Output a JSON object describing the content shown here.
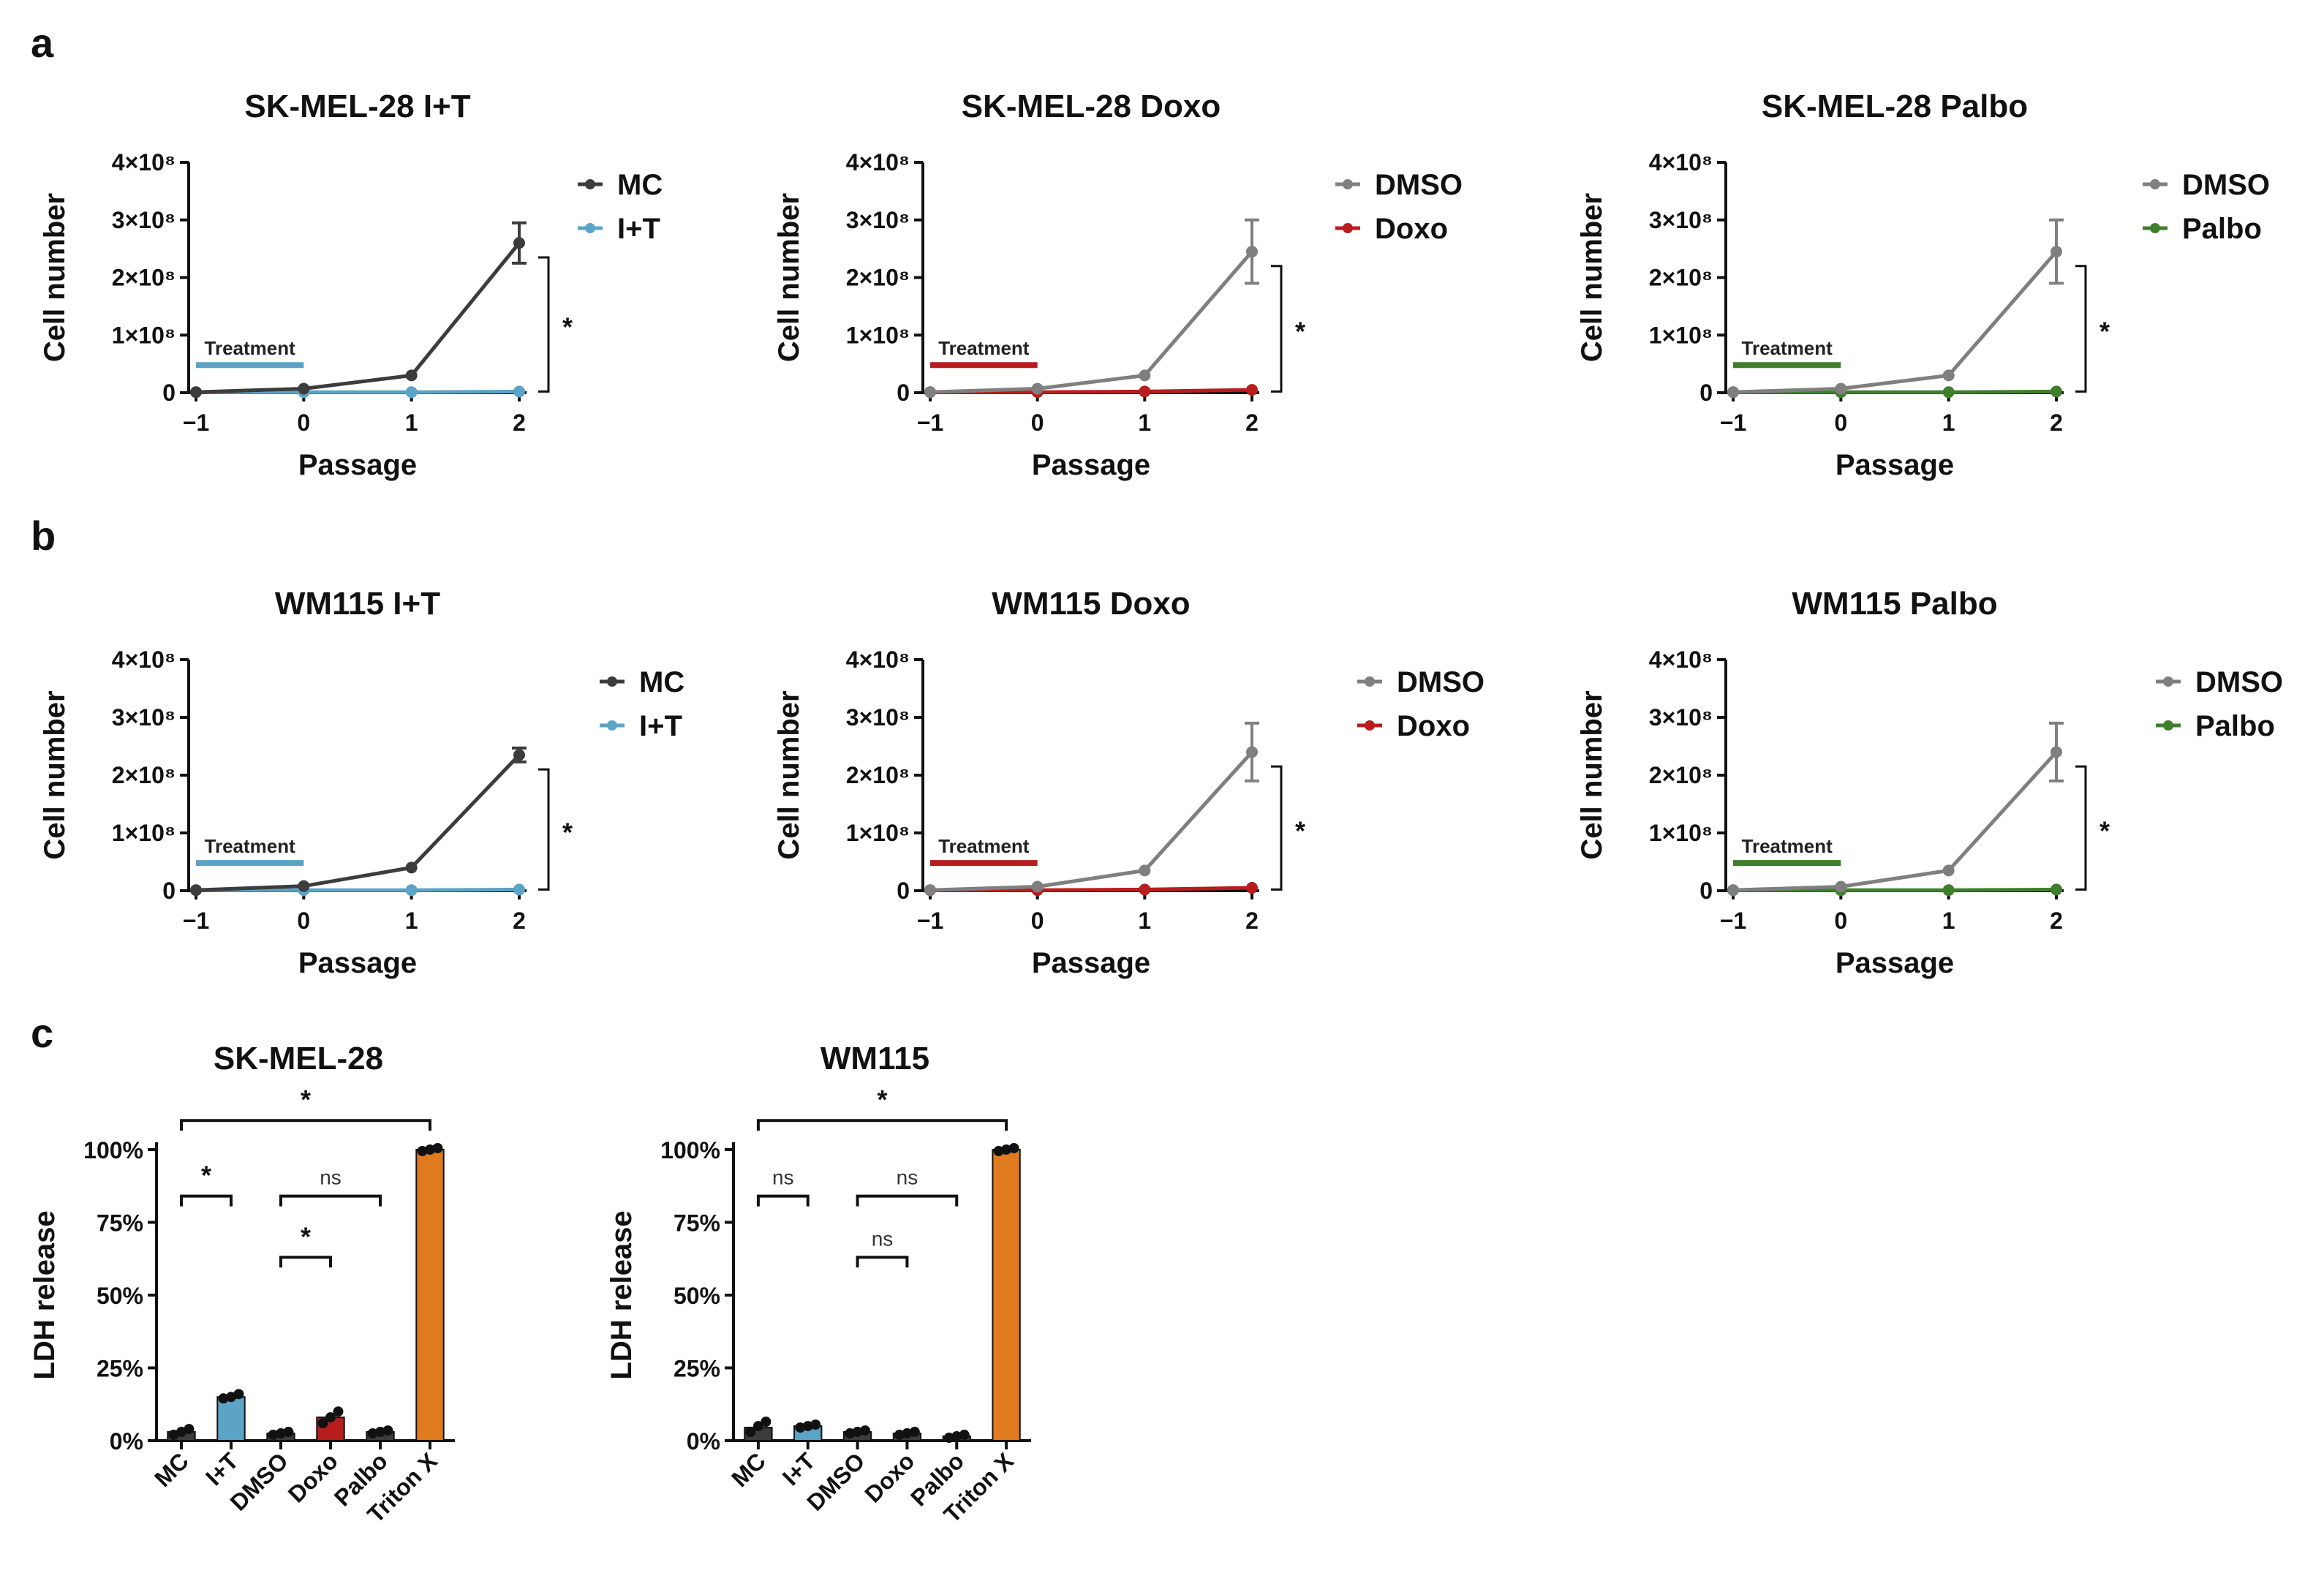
{
  "panel_labels": [
    "a",
    "b",
    "c"
  ],
  "colors": {
    "MC": "#3c3c3c",
    "DMSO": "#7f7f7f",
    "I+T": "#5ba3c7",
    "Doxo": "#b81d1d",
    "Palbo": "#3f7f2c",
    "Triton X": "#e07a1e"
  },
  "chart_data": [
    {
      "type": "line",
      "title": "SK-MEL-28 I+T",
      "xlabel": "Passage",
      "ylabel": "Cell number",
      "x": [
        -1,
        0,
        1,
        2
      ],
      "x_ticks": [
        "−1",
        "0",
        "1",
        "2"
      ],
      "y_ticks": [
        "0",
        "1×10⁸",
        "2×10⁸",
        "3×10⁸",
        "4×10⁸"
      ],
      "ylim": [
        0,
        400000000.0
      ],
      "series": [
        {
          "name": "MC",
          "color": "#3c3c3c",
          "values": [
            1000000.0,
            7000000.0,
            30000000.0,
            260000000.0
          ],
          "err": [
            0,
            0,
            0,
            35000000.0
          ]
        },
        {
          "name": "I+T",
          "color": "#5ba3c7",
          "values": [
            1000000.0,
            1000000.0,
            1000000.0,
            2000000.0
          ],
          "err": [
            0,
            0,
            0,
            0
          ]
        }
      ],
      "treatment": {
        "label": "Treatment",
        "from": -1,
        "to": 0,
        "color": "#5ba3c7"
      },
      "significance": "*",
      "legend": "right"
    },
    {
      "type": "line",
      "title": "SK-MEL-28 Doxo",
      "xlabel": "Passage",
      "ylabel": "Cell number",
      "x": [
        -1,
        0,
        1,
        2
      ],
      "x_ticks": [
        "−1",
        "0",
        "1",
        "2"
      ],
      "y_ticks": [
        "0",
        "1×10⁸",
        "2×10⁸",
        "3×10⁸",
        "4×10⁸"
      ],
      "ylim": [
        0,
        400000000.0
      ],
      "series": [
        {
          "name": "DMSO",
          "color": "#7f7f7f",
          "values": [
            1000000.0,
            7000000.0,
            30000000.0,
            245000000.0
          ],
          "err": [
            0,
            0,
            0,
            55000000.0
          ]
        },
        {
          "name": "Doxo",
          "color": "#b81d1d",
          "values": [
            1000000.0,
            1000000.0,
            2000000.0,
            5000000.0
          ],
          "err": [
            0,
            0,
            0,
            0
          ]
        }
      ],
      "treatment": {
        "label": "Treatment",
        "from": -1,
        "to": 0,
        "color": "#b81d1d"
      },
      "significance": "*",
      "legend": "right"
    },
    {
      "type": "line",
      "title": "SK-MEL-28 Palbo",
      "xlabel": "Passage",
      "ylabel": "Cell number",
      "x": [
        -1,
        0,
        1,
        2
      ],
      "x_ticks": [
        "−1",
        "0",
        "1",
        "2"
      ],
      "y_ticks": [
        "0",
        "1×10⁸",
        "2×10⁸",
        "3×10⁸",
        "4×10⁸"
      ],
      "ylim": [
        0,
        400000000.0
      ],
      "series": [
        {
          "name": "DMSO",
          "color": "#7f7f7f",
          "values": [
            1000000.0,
            7000000.0,
            30000000.0,
            245000000.0
          ],
          "err": [
            0,
            0,
            0,
            55000000.0
          ]
        },
        {
          "name": "Palbo",
          "color": "#3f7f2c",
          "values": [
            1000000.0,
            1000000.0,
            1000000.0,
            2000000.0
          ],
          "err": [
            0,
            0,
            0,
            0
          ]
        }
      ],
      "treatment": {
        "label": "Treatment",
        "from": -1,
        "to": 0,
        "color": "#3f7f2c"
      },
      "significance": "*",
      "legend": "right"
    },
    {
      "type": "line",
      "title": "WM115 I+T",
      "xlabel": "Passage",
      "ylabel": "Cell number",
      "x": [
        -1,
        0,
        1,
        2
      ],
      "x_ticks": [
        "−1",
        "0",
        "1",
        "2"
      ],
      "y_ticks": [
        "0",
        "1×10⁸",
        "2×10⁸",
        "3×10⁸",
        "4×10⁸"
      ],
      "ylim": [
        0,
        400000000.0
      ],
      "series": [
        {
          "name": "MC",
          "color": "#3c3c3c",
          "values": [
            1000000.0,
            8000000.0,
            40000000.0,
            235000000.0
          ],
          "err": [
            0,
            0,
            0,
            12000000.0
          ]
        },
        {
          "name": "I+T",
          "color": "#5ba3c7",
          "values": [
            1000000.0,
            1000000.0,
            1000000.0,
            2000000.0
          ],
          "err": [
            0,
            0,
            0,
            0
          ]
        }
      ],
      "treatment": {
        "label": "Treatment",
        "from": -1,
        "to": 0,
        "color": "#5ba3c7"
      },
      "significance": "*",
      "legend": "right"
    },
    {
      "type": "line",
      "title": "WM115 Doxo",
      "xlabel": "Passage",
      "ylabel": "Cell number",
      "x": [
        -1,
        0,
        1,
        2
      ],
      "x_ticks": [
        "−1",
        "0",
        "1",
        "2"
      ],
      "y_ticks": [
        "0",
        "1×10⁸",
        "2×10⁸",
        "3×10⁸",
        "4×10⁸"
      ],
      "ylim": [
        0,
        400000000.0
      ],
      "series": [
        {
          "name": "DMSO",
          "color": "#7f7f7f",
          "values": [
            1000000.0,
            7000000.0,
            35000000.0,
            240000000.0
          ],
          "err": [
            0,
            0,
            0,
            50000000.0
          ]
        },
        {
          "name": "Doxo",
          "color": "#b81d1d",
          "values": [
            1000000.0,
            1000000.0,
            2000000.0,
            5000000.0
          ],
          "err": [
            0,
            0,
            0,
            0
          ]
        }
      ],
      "treatment": {
        "label": "Treatment",
        "from": -1,
        "to": 0,
        "color": "#b81d1d"
      },
      "significance": "*",
      "legend": "right"
    },
    {
      "type": "line",
      "title": "WM115 Palbo",
      "xlabel": "Passage",
      "ylabel": "Cell number",
      "x": [
        -1,
        0,
        1,
        2
      ],
      "x_ticks": [
        "−1",
        "0",
        "1",
        "2"
      ],
      "y_ticks": [
        "0",
        "1×10⁸",
        "2×10⁸",
        "3×10⁸",
        "4×10⁸"
      ],
      "ylim": [
        0,
        400000000.0
      ],
      "series": [
        {
          "name": "DMSO",
          "color": "#7f7f7f",
          "values": [
            1000000.0,
            7000000.0,
            35000000.0,
            240000000.0
          ],
          "err": [
            0,
            0,
            0,
            50000000.0
          ]
        },
        {
          "name": "Palbo",
          "color": "#3f7f2c",
          "values": [
            1000000.0,
            1000000.0,
            1000000.0,
            2000000.0
          ],
          "err": [
            0,
            0,
            0,
            0
          ]
        }
      ],
      "treatment": {
        "label": "Treatment",
        "from": -1,
        "to": 0,
        "color": "#3f7f2c"
      },
      "significance": "*",
      "legend": "right"
    },
    {
      "type": "bar",
      "title": "SK-MEL-28",
      "ylabel": "LDH release",
      "ylim": [
        0,
        100
      ],
      "y_ticks": [
        "0%",
        "25%",
        "50%",
        "75%",
        "100%"
      ],
      "categories": [
        "MC",
        "I+T",
        "DMSO",
        "Doxo",
        "Palbo",
        "Triton X"
      ],
      "values": [
        3,
        15,
        2.5,
        8,
        3,
        100
      ],
      "points": [
        [
          2,
          3,
          4
        ],
        [
          14.5,
          15,
          16
        ],
        [
          2,
          2.5,
          3
        ],
        [
          6,
          8,
          10
        ],
        [
          2.5,
          3,
          3.5
        ],
        [
          99.5,
          100,
          100.5
        ]
      ],
      "bar_colors": [
        "#3c3c3c",
        "#5ba3c7",
        "#3c3c3c",
        "#b81d1d",
        "#3c3c3c",
        "#e07a1e"
      ],
      "comparisons": [
        {
          "from": 0,
          "to": 5,
          "label": "*"
        },
        {
          "from": 0,
          "to": 1,
          "label": "*"
        },
        {
          "from": 2,
          "to": 4,
          "label": "ns"
        },
        {
          "from": 2,
          "to": 3,
          "label": "*"
        }
      ]
    },
    {
      "type": "bar",
      "title": "WM115",
      "ylabel": "LDH release",
      "ylim": [
        0,
        100
      ],
      "y_ticks": [
        "0%",
        "25%",
        "50%",
        "75%",
        "100%"
      ],
      "categories": [
        "MC",
        "I+T",
        "DMSO",
        "Doxo",
        "Palbo",
        "Triton X"
      ],
      "values": [
        4.5,
        5,
        3,
        2.5,
        1.5,
        100
      ],
      "points": [
        [
          3,
          5,
          6.5
        ],
        [
          4.5,
          5,
          5.5
        ],
        [
          2.5,
          3,
          3.5
        ],
        [
          2,
          2.5,
          3
        ],
        [
          1,
          1.5,
          2
        ],
        [
          99.5,
          100,
          100.5
        ]
      ],
      "bar_colors": [
        "#3c3c3c",
        "#5ba3c7",
        "#3c3c3c",
        "#3c3c3c",
        "#3c3c3c",
        "#e07a1e"
      ],
      "comparisons": [
        {
          "from": 0,
          "to": 5,
          "label": "*"
        },
        {
          "from": 0,
          "to": 1,
          "label": "ns"
        },
        {
          "from": 2,
          "to": 4,
          "label": "ns"
        },
        {
          "from": 2,
          "to": 3,
          "label": "ns"
        }
      ]
    }
  ]
}
